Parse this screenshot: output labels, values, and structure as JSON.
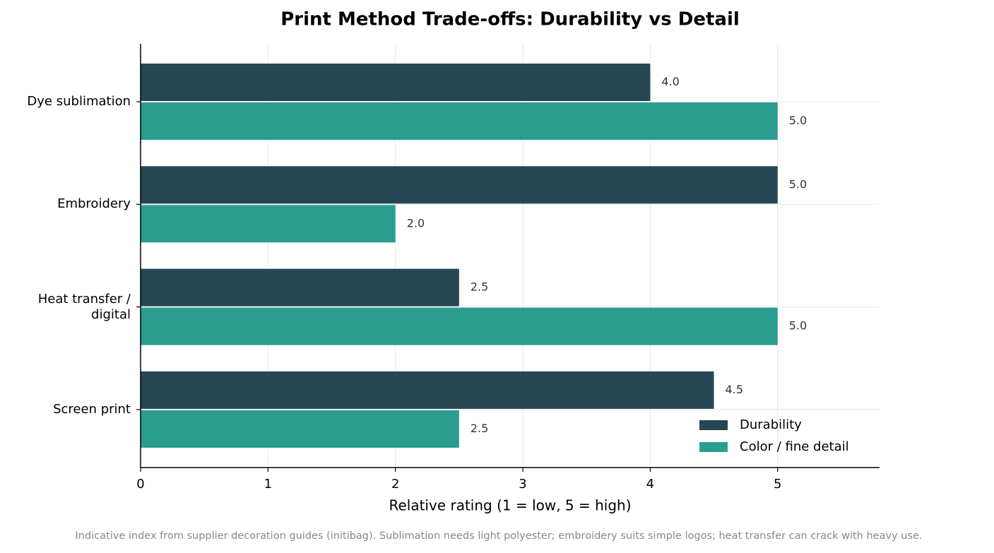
{
  "chart_data": {
    "type": "barh",
    "title": "Print Method Trade-offs: Durability vs Detail",
    "x_label": "Relative rating (1 = low, 5 = high)",
    "note": "Indicative index from supplier decoration guides (initibag). Sublimation needs light polyester; embroidery suits simple logos; heat transfer can crack with heavy use.",
    "categories": [
      "Dye sublimation",
      "Embroidery",
      "Heat transfer /\ndigital",
      "Screen print"
    ],
    "series": [
      {
        "name": "Durability",
        "color": "#264653",
        "values": [
          4,
          5,
          2.5,
          4.5
        ],
        "value_labels": [
          "4.0",
          "5.0",
          "2.5",
          "4.5"
        ]
      },
      {
        "name": "Color / fine detail",
        "color": "#2a9d8f",
        "values": [
          5,
          2,
          5,
          2.5
        ],
        "value_labels": [
          "5.0",
          "2.0",
          "5.0",
          "2.5"
        ]
      }
    ],
    "xlim": [
      0,
      5.8
    ],
    "xticks": [
      0,
      1,
      2,
      3,
      4,
      5
    ],
    "grid": true,
    "legend": "lower right"
  }
}
